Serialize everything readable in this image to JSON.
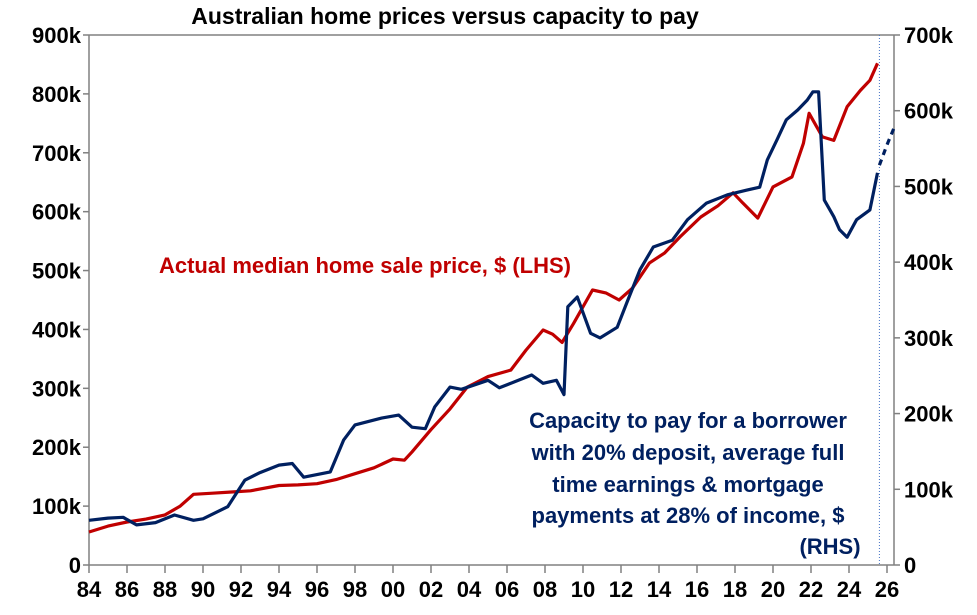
{
  "chart_data": {
    "type": "line",
    "title": "Australian home prices versus capacity to pay",
    "x_range": [
      1984,
      2026.4
    ],
    "x_tick_labels": [
      "84",
      "86",
      "88",
      "90",
      "92",
      "94",
      "96",
      "98",
      "00",
      "02",
      "04",
      "06",
      "08",
      "10",
      "12",
      "14",
      "16",
      "18",
      "20",
      "22",
      "24",
      "26"
    ],
    "x_tick_years": [
      1984,
      1986,
      1988,
      1990,
      1992,
      1994,
      1996,
      1998,
      2000,
      2002,
      2004,
      2006,
      2008,
      2010,
      2012,
      2014,
      2016,
      2018,
      2020,
      2022,
      2024,
      2026
    ],
    "y_left": {
      "range": [
        0,
        900000
      ],
      "tick_labels": [
        "0",
        "100k",
        "200k",
        "300k",
        "400k",
        "500k",
        "600k",
        "700k",
        "800k",
        "900k"
      ]
    },
    "y_right": {
      "range": [
        0,
        700000
      ],
      "tick_labels": [
        "0",
        "100k",
        "200k",
        "300k",
        "400k",
        "500k",
        "600k",
        "700k"
      ]
    },
    "forecast_marker_year": 2025.6,
    "series": [
      {
        "name": "Actual median home sale price, $ (LHS)",
        "axis": "left",
        "color": "#C00000",
        "points": [
          [
            1984,
            56000
          ],
          [
            1985,
            66000
          ],
          [
            1986,
            73000
          ],
          [
            1987,
            78000
          ],
          [
            1988,
            85000
          ],
          [
            1988.8,
            100000
          ],
          [
            1989.5,
            120000
          ],
          [
            1990.5,
            122000
          ],
          [
            1991.5,
            124000
          ],
          [
            1992.5,
            126000
          ],
          [
            1994,
            135000
          ],
          [
            1995,
            136000
          ],
          [
            1996,
            138000
          ],
          [
            1997,
            145000
          ],
          [
            1998,
            155000
          ],
          [
            1999,
            165000
          ],
          [
            2000,
            180000
          ],
          [
            2000.6,
            178000
          ],
          [
            2001,
            192000
          ],
          [
            2002,
            230000
          ],
          [
            2003,
            265000
          ],
          [
            2003.9,
            302000
          ],
          [
            2005,
            320000
          ],
          [
            2006.2,
            331000
          ],
          [
            2007,
            365000
          ],
          [
            2007.9,
            399000
          ],
          [
            2008.4,
            392000
          ],
          [
            2008.9,
            378000
          ],
          [
            2009.5,
            410000
          ],
          [
            2010.5,
            467000
          ],
          [
            2011.2,
            462000
          ],
          [
            2011.9,
            450000
          ],
          [
            2012.6,
            470000
          ],
          [
            2013.5,
            513000
          ],
          [
            2014.3,
            530000
          ],
          [
            2015.1,
            557000
          ],
          [
            2016.2,
            591000
          ],
          [
            2017.1,
            610000
          ],
          [
            2017.9,
            632000
          ],
          [
            2018.4,
            615000
          ],
          [
            2019.2,
            589000
          ],
          [
            2020,
            642000
          ],
          [
            2021,
            659000
          ],
          [
            2021.6,
            716000
          ],
          [
            2021.9,
            767000
          ],
          [
            2022.6,
            727000
          ],
          [
            2023.2,
            721000
          ],
          [
            2023.9,
            778000
          ],
          [
            2024.6,
            806000
          ],
          [
            2025.1,
            823000
          ],
          [
            2025.5,
            852000
          ]
        ]
      },
      {
        "name": "Capacity to pay for a borrower with 20% deposit, average full time earnings & mortgage payments at 28% of income, $ (RHS)",
        "axis": "right",
        "color": "#002060",
        "points": [
          [
            1984,
            59000
          ],
          [
            1985,
            62000
          ],
          [
            1985.8,
            63000
          ],
          [
            1986.5,
            53000
          ],
          [
            1987.5,
            56000
          ],
          [
            1988.5,
            66000
          ],
          [
            1989.5,
            59000
          ],
          [
            1990,
            61000
          ],
          [
            1991.3,
            77000
          ],
          [
            1992.2,
            112000
          ],
          [
            1993,
            122000
          ],
          [
            1994,
            132000
          ],
          [
            1994.7,
            134000
          ],
          [
            1995.3,
            116000
          ],
          [
            1996.7,
            123000
          ],
          [
            1997.4,
            165000
          ],
          [
            1998,
            185000
          ],
          [
            1999.4,
            194000
          ],
          [
            2000.3,
            198000
          ],
          [
            2001,
            182000
          ],
          [
            2001.7,
            180000
          ],
          [
            2002.2,
            209000
          ],
          [
            2003,
            235000
          ],
          [
            2003.6,
            232000
          ],
          [
            2005,
            244000
          ],
          [
            2005.6,
            234000
          ],
          [
            2006.6,
            244000
          ],
          [
            2007.3,
            251000
          ],
          [
            2007.9,
            240000
          ],
          [
            2008.6,
            244000
          ],
          [
            2009,
            225000
          ],
          [
            2009.2,
            341000
          ],
          [
            2009.7,
            354000
          ],
          [
            2010.4,
            306000
          ],
          [
            2010.9,
            300000
          ],
          [
            2011.8,
            314000
          ],
          [
            2012.3,
            346000
          ],
          [
            2013,
            390000
          ],
          [
            2013.7,
            420000
          ],
          [
            2014.7,
            429000
          ],
          [
            2015.5,
            456000
          ],
          [
            2016.5,
            478000
          ],
          [
            2017.6,
            489000
          ],
          [
            2018.6,
            495000
          ],
          [
            2019.3,
            499000
          ],
          [
            2019.7,
            535000
          ],
          [
            2020.2,
            561000
          ],
          [
            2020.7,
            588000
          ],
          [
            2021.3,
            601000
          ],
          [
            2021.8,
            614000
          ],
          [
            2022.1,
            625000
          ],
          [
            2022.4,
            625000
          ],
          [
            2022.7,
            482000
          ],
          [
            2023.2,
            460000
          ],
          [
            2023.5,
            443000
          ],
          [
            2023.9,
            433000
          ],
          [
            2024.4,
            456000
          ],
          [
            2025.1,
            469000
          ],
          [
            2025.5,
            518000
          ]
        ],
        "forecast_points": [
          [
            2025.6,
            528000
          ],
          [
            2026,
            555000
          ],
          [
            2026.4,
            579000
          ]
        ]
      }
    ],
    "annotations": {
      "red_label": "Actual median home sale price, $ (LHS)",
      "blue_label_lines": [
        "Capacity to pay for a borrower",
        "with 20% deposit, average full",
        "time earnings & mortgage",
        "payments at 28% of income, $",
        "(RHS)"
      ]
    }
  }
}
